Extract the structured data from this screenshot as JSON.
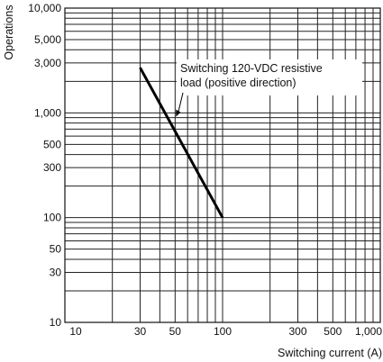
{
  "chart_data": {
    "type": "line",
    "title": "",
    "xlabel": "Switching current (A)",
    "ylabel": "Operations",
    "x_scale": "log",
    "y_scale": "log",
    "xlim": [
      10,
      1000
    ],
    "ylim": [
      10,
      10000
    ],
    "x_ticks": [
      {
        "value": 10,
        "label": "10"
      },
      {
        "value": 30,
        "label": "30"
      },
      {
        "value": 50,
        "label": "50"
      },
      {
        "value": 100,
        "label": "100"
      },
      {
        "value": 300,
        "label": "300"
      },
      {
        "value": 500,
        "label": "500"
      },
      {
        "value": 1000,
        "label": "1,000"
      }
    ],
    "y_ticks": [
      {
        "value": 10,
        "label": "10"
      },
      {
        "value": 30,
        "label": "30"
      },
      {
        "value": 50,
        "label": "50"
      },
      {
        "value": 100,
        "label": "100"
      },
      {
        "value": 300,
        "label": "300"
      },
      {
        "value": 500,
        "label": "500"
      },
      {
        "value": 1000,
        "label": "1,000"
      },
      {
        "value": 3000,
        "label": "3,000"
      },
      {
        "value": 5000,
        "label": "5,000"
      },
      {
        "value": 10000,
        "label": "10,000"
      }
    ],
    "grid": true,
    "series": [
      {
        "name": "",
        "x": [
          30,
          100
        ],
        "y": [
          2700,
          100
        ]
      }
    ],
    "annotations": [
      {
        "lines": [
          "Switching 120-VDC resistive",
          "load (positive direction)"
        ],
        "points_to": {
          "x": 50,
          "y": 900
        }
      }
    ]
  }
}
